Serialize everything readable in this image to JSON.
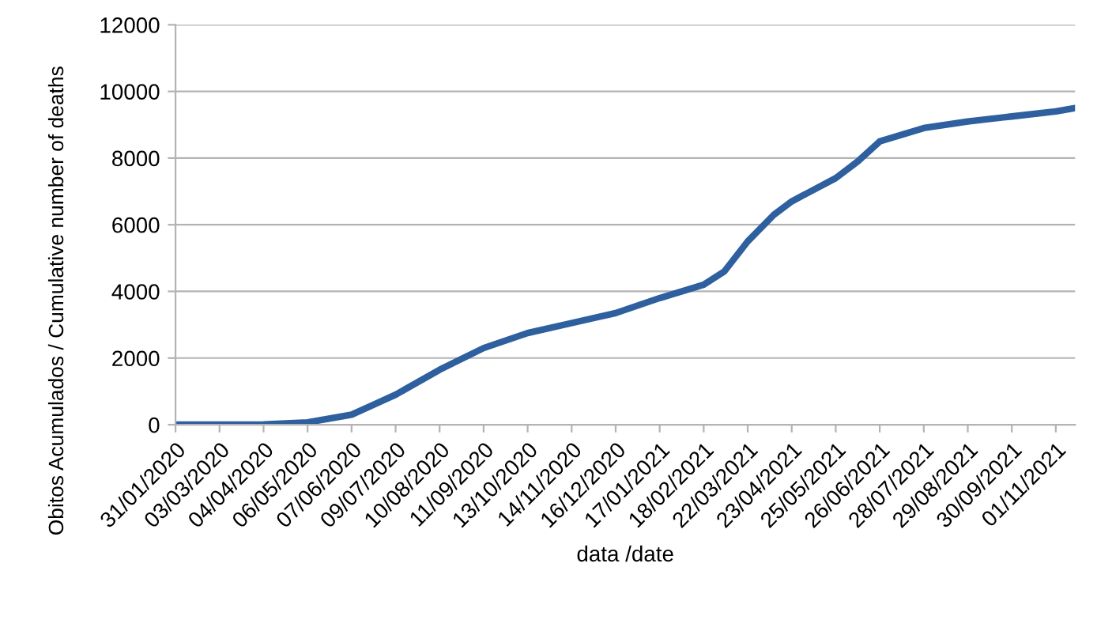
{
  "chart_data": {
    "type": "line",
    "xlabel": "data /date",
    "ylabel": "Obitos Acumulados / Cumulative number of deaths",
    "x": [
      "2020-01-31",
      "2020-03-03",
      "2020-04-04",
      "2020-05-06",
      "2020-06-07",
      "2020-07-09",
      "2020-08-10",
      "2020-09-11",
      "2020-10-13",
      "2020-11-14",
      "2020-12-16",
      "2021-01-17",
      "2021-02-18",
      "2021-03-05",
      "2021-03-22",
      "2021-04-10",
      "2021-04-23",
      "2021-05-25",
      "2021-06-10",
      "2021-06-26",
      "2021-07-28",
      "2021-08-29",
      "2021-09-30",
      "2021-11-01",
      "2021-11-15"
    ],
    "series": [
      {
        "color": "#2e5f9e",
        "values": [
          0,
          0,
          10,
          70,
          300,
          900,
          1650,
          2300,
          2750,
          3050,
          3350,
          3800,
          4200,
          4600,
          5500,
          6300,
          6700,
          7400,
          7900,
          8500,
          8900,
          9100,
          9250,
          9400,
          9500
        ]
      }
    ],
    "xlim": [
      "2020-01-31",
      "2021-11-15"
    ],
    "xticks": [
      {
        "value": "2020-01-31",
        "label": "31/01/2020"
      },
      {
        "value": "2020-03-03",
        "label": "03/03/2020"
      },
      {
        "value": "2020-04-04",
        "label": "04/04/2020"
      },
      {
        "value": "2020-05-06",
        "label": "06/05/2020"
      },
      {
        "value": "2020-06-07",
        "label": "07/06/2020"
      },
      {
        "value": "2020-07-09",
        "label": "09/07/2020"
      },
      {
        "value": "2020-08-10",
        "label": "10/08/2020"
      },
      {
        "value": "2020-09-11",
        "label": "11/09/2020"
      },
      {
        "value": "2020-10-13",
        "label": "13/10/2020"
      },
      {
        "value": "2020-11-14",
        "label": "14/11/2020"
      },
      {
        "value": "2020-12-16",
        "label": "16/12/2020"
      },
      {
        "value": "2021-01-17",
        "label": "17/01/2021"
      },
      {
        "value": "2021-02-18",
        "label": "18/02/2021"
      },
      {
        "value": "2021-03-22",
        "label": "22/03/2021"
      },
      {
        "value": "2021-04-23",
        "label": "23/04/2021"
      },
      {
        "value": "2021-05-25",
        "label": "25/05/2021"
      },
      {
        "value": "2021-06-26",
        "label": "26/06/2021"
      },
      {
        "value": "2021-07-28",
        "label": "28/07/2021"
      },
      {
        "value": "2021-08-29",
        "label": "29/08/2021"
      },
      {
        "value": "2021-09-30",
        "label": "30/09/2021"
      },
      {
        "value": "2021-11-01",
        "label": "01/11/2021"
      }
    ],
    "ylim": [
      0,
      12000
    ],
    "yticks": [
      0,
      2000,
      4000,
      6000,
      8000,
      10000,
      12000
    ],
    "grid": "y",
    "legend": false,
    "marker": "none",
    "line_style": "solid"
  }
}
